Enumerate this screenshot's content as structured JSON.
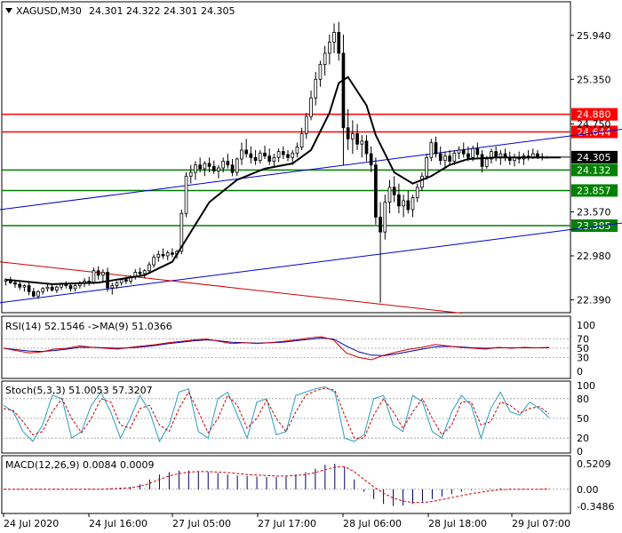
{
  "chart_data": {
    "type": "candlestick",
    "symbol": "XAGUSD,M30",
    "ohlc_label": "24.301 24.322 24.301 24.305",
    "y_ticks": [
      "25.940",
      "25.350",
      "24.750",
      "23.570",
      "22.980",
      "22.390"
    ],
    "x_ticks": [
      "24 Jul 2020",
      "24 Jul 16:00",
      "27 Jul 05:00",
      "27 Jul 17:00",
      "28 Jul 06:00",
      "28 Jul 18:00",
      "29 Jul 07:00"
    ],
    "ylim": [
      22.3,
      26.2
    ],
    "current_price": "24.305",
    "horizontal_levels": [
      {
        "value": 24.88,
        "label": "24.880",
        "color": "#ff0000"
      },
      {
        "value": 24.644,
        "label": "24.644",
        "color": "#ff0000"
      },
      {
        "value": 24.132,
        "label": "24.132",
        "color": "#008000"
      },
      {
        "value": 23.857,
        "label": "23.857",
        "color": "#008000"
      },
      {
        "value": 23.385,
        "label": "23.385",
        "color": "#008000"
      }
    ],
    "trendlines": [
      {
        "color": "#0000cc",
        "x": [
          0,
          700
        ],
        "y": [
          23.6,
          24.68
        ]
      },
      {
        "color": "#0000cc",
        "x": [
          0,
          700
        ],
        "y": [
          22.35,
          23.42
        ]
      },
      {
        "color": "#cc0000",
        "x": [
          0,
          520
        ],
        "y": [
          22.9,
          22.21
        ]
      }
    ],
    "candles": [
      [
        22.64,
        22.68,
        22.58,
        22.66
      ],
      [
        22.66,
        22.7,
        22.6,
        22.62
      ],
      [
        22.62,
        22.66,
        22.55,
        22.6
      ],
      [
        22.6,
        22.63,
        22.52,
        22.56
      ],
      [
        22.56,
        22.6,
        22.5,
        22.58
      ],
      [
        22.58,
        22.62,
        22.45,
        22.5
      ],
      [
        22.5,
        22.55,
        22.42,
        22.44
      ],
      [
        22.44,
        22.52,
        22.4,
        22.5
      ],
      [
        22.5,
        22.56,
        22.46,
        22.54
      ],
      [
        22.54,
        22.6,
        22.5,
        22.56
      ],
      [
        22.56,
        22.6,
        22.5,
        22.52
      ],
      [
        22.52,
        22.58,
        22.48,
        22.56
      ],
      [
        22.56,
        22.62,
        22.52,
        22.6
      ],
      [
        22.6,
        22.64,
        22.54,
        22.58
      ],
      [
        22.58,
        22.62,
        22.5,
        22.54
      ],
      [
        22.54,
        22.6,
        22.5,
        22.58
      ],
      [
        22.58,
        22.64,
        22.54,
        22.62
      ],
      [
        22.62,
        22.68,
        22.56,
        22.64
      ],
      [
        22.64,
        22.7,
        22.58,
        22.62
      ],
      [
        22.62,
        22.82,
        22.6,
        22.78
      ],
      [
        22.78,
        22.84,
        22.66,
        22.72
      ],
      [
        22.72,
        22.8,
        22.64,
        22.76
      ],
      [
        22.76,
        22.82,
        22.5,
        22.55
      ],
      [
        22.55,
        22.62,
        22.46,
        22.58
      ],
      [
        22.58,
        22.64,
        22.54,
        22.62
      ],
      [
        22.62,
        22.68,
        22.58,
        22.66
      ],
      [
        22.66,
        22.7,
        22.6,
        22.64
      ],
      [
        22.64,
        22.72,
        22.6,
        22.7
      ],
      [
        22.7,
        22.8,
        22.66,
        22.76
      ],
      [
        22.76,
        22.82,
        22.7,
        22.74
      ],
      [
        22.74,
        22.8,
        22.68,
        22.78
      ],
      [
        22.78,
        22.9,
        22.74,
        22.86
      ],
      [
        22.86,
        23.0,
        22.82,
        22.96
      ],
      [
        22.96,
        23.05,
        22.9,
        23.0
      ],
      [
        23.0,
        23.08,
        22.94,
        22.98
      ],
      [
        22.98,
        23.05,
        22.92,
        23.02
      ],
      [
        23.02,
        23.08,
        22.96,
        23.0
      ],
      [
        23.0,
        23.06,
        22.94,
        23.04
      ],
      [
        23.04,
        23.6,
        23.0,
        23.55
      ],
      [
        23.55,
        24.1,
        23.5,
        24.05
      ],
      [
        24.05,
        24.2,
        23.95,
        24.1
      ],
      [
        24.1,
        24.25,
        24.0,
        24.2
      ],
      [
        24.2,
        24.3,
        24.1,
        24.15
      ],
      [
        24.15,
        24.25,
        24.05,
        24.22
      ],
      [
        24.22,
        24.3,
        24.1,
        24.18
      ],
      [
        24.18,
        24.26,
        24.08,
        24.12
      ],
      [
        24.12,
        24.2,
        24.02,
        24.16
      ],
      [
        24.16,
        24.3,
        24.1,
        24.25
      ],
      [
        24.25,
        24.35,
        24.15,
        24.2
      ],
      [
        24.2,
        24.28,
        24.05,
        24.1
      ],
      [
        24.1,
        24.3,
        24.05,
        24.28
      ],
      [
        24.28,
        24.5,
        24.2,
        24.4
      ],
      [
        24.4,
        24.55,
        24.3,
        24.35
      ],
      [
        24.35,
        24.45,
        24.22,
        24.3
      ],
      [
        24.3,
        24.4,
        24.2,
        24.26
      ],
      [
        24.26,
        24.4,
        24.22,
        24.36
      ],
      [
        24.36,
        24.46,
        24.28,
        24.32
      ],
      [
        24.32,
        24.42,
        24.2,
        24.25
      ],
      [
        24.25,
        24.35,
        24.18,
        24.3
      ],
      [
        24.3,
        24.42,
        24.24,
        24.38
      ],
      [
        24.38,
        24.45,
        24.28,
        24.34
      ],
      [
        24.34,
        24.4,
        24.25,
        24.3
      ],
      [
        24.3,
        24.4,
        24.2,
        24.36
      ],
      [
        24.36,
        24.5,
        24.3,
        24.44
      ],
      [
        24.44,
        24.7,
        24.4,
        24.62
      ],
      [
        24.62,
        24.9,
        24.55,
        24.85
      ],
      [
        24.85,
        25.2,
        24.8,
        25.1
      ],
      [
        25.1,
        25.45,
        25.0,
        25.35
      ],
      [
        25.35,
        25.6,
        25.25,
        25.55
      ],
      [
        25.55,
        25.8,
        25.4,
        25.7
      ],
      [
        25.7,
        25.95,
        25.55,
        25.85
      ],
      [
        25.85,
        26.1,
        25.7,
        25.98
      ],
      [
        25.98,
        26.12,
        25.6,
        25.7
      ],
      [
        25.7,
        25.95,
        24.2,
        24.7
      ],
      [
        24.7,
        24.95,
        24.4,
        24.55
      ],
      [
        24.55,
        24.8,
        24.35,
        24.62
      ],
      [
        24.62,
        24.75,
        24.4,
        24.48
      ],
      [
        24.48,
        24.6,
        24.3,
        24.52
      ],
      [
        24.52,
        24.6,
        24.25,
        24.35
      ],
      [
        24.35,
        24.45,
        24.1,
        24.2
      ],
      [
        24.2,
        24.3,
        23.4,
        23.5
      ],
      [
        23.5,
        23.7,
        22.35,
        23.3
      ],
      [
        23.3,
        23.8,
        23.2,
        23.7
      ],
      [
        23.7,
        24.0,
        23.55,
        23.9
      ],
      [
        23.9,
        24.05,
        23.7,
        23.8
      ],
      [
        23.8,
        23.95,
        23.55,
        23.65
      ],
      [
        23.65,
        23.8,
        23.5,
        23.72
      ],
      [
        23.72,
        23.85,
        23.55,
        23.6
      ],
      [
        23.6,
        23.8,
        23.5,
        23.76
      ],
      [
        23.76,
        23.95,
        23.7,
        23.9
      ],
      [
        23.9,
        24.1,
        23.85,
        24.05
      ],
      [
        24.05,
        24.35,
        24.0,
        24.3
      ],
      [
        24.3,
        24.55,
        24.25,
        24.5
      ],
      [
        24.5,
        24.58,
        24.3,
        24.35
      ],
      [
        24.35,
        24.45,
        24.2,
        24.26
      ],
      [
        24.26,
        24.38,
        24.15,
        24.32
      ],
      [
        24.32,
        24.4,
        24.2,
        24.25
      ],
      [
        24.25,
        24.4,
        24.2,
        24.36
      ],
      [
        24.36,
        24.45,
        24.28,
        24.4
      ],
      [
        24.4,
        24.5,
        24.3,
        24.35
      ],
      [
        24.35,
        24.45,
        24.25,
        24.3
      ],
      [
        24.3,
        24.46,
        24.25,
        24.42
      ],
      [
        24.42,
        24.5,
        24.3,
        24.34
      ],
      [
        24.34,
        24.4,
        24.1,
        24.18
      ],
      [
        24.18,
        24.32,
        24.15,
        24.28
      ],
      [
        24.28,
        24.42,
        24.22,
        24.38
      ],
      [
        24.38,
        24.45,
        24.25,
        24.3
      ],
      [
        24.3,
        24.4,
        24.2,
        24.35
      ],
      [
        24.35,
        24.42,
        24.25,
        24.3
      ],
      [
        24.3,
        24.38,
        24.2,
        24.26
      ],
      [
        24.26,
        24.35,
        24.18,
        24.3
      ],
      [
        24.3,
        24.38,
        24.22,
        24.28
      ],
      [
        24.28,
        24.36,
        24.2,
        24.32
      ],
      [
        24.32,
        24.4,
        24.26,
        24.3
      ],
      [
        24.3,
        24.42,
        24.28,
        24.35
      ],
      [
        24.35,
        24.4,
        24.28,
        24.31
      ],
      [
        24.31,
        24.36,
        24.26,
        24.3
      ],
      [
        24.301,
        24.322,
        24.301,
        24.305
      ]
    ],
    "moving_average": [
      [
        0,
        22.66
      ],
      [
        10,
        22.6
      ],
      [
        20,
        22.62
      ],
      [
        30,
        22.72
      ],
      [
        36,
        22.9
      ],
      [
        40,
        23.3
      ],
      [
        44,
        23.7
      ],
      [
        50,
        24.0
      ],
      [
        56,
        24.15
      ],
      [
        62,
        24.22
      ],
      [
        66,
        24.4
      ],
      [
        70,
        24.9
      ],
      [
        72,
        25.3
      ],
      [
        74,
        25.38
      ],
      [
        78,
        25.0
      ],
      [
        80,
        24.6
      ],
      [
        84,
        24.1
      ],
      [
        88,
        23.95
      ],
      [
        92,
        24.05
      ],
      [
        96,
        24.2
      ],
      [
        100,
        24.28
      ],
      [
        106,
        24.3
      ],
      [
        112,
        24.3
      ],
      [
        120,
        24.3
      ]
    ],
    "rsi": {
      "label": "RSI(14) 52.1546 ->MA(9) 51.0366",
      "ticks": [
        "100",
        "70",
        "50",
        "30",
        "0"
      ],
      "rsi_values": [
        50,
        45,
        40,
        42,
        48,
        50,
        55,
        52,
        50,
        48,
        52,
        55,
        58,
        62,
        65,
        68,
        70,
        65,
        60,
        62,
        60,
        62,
        65,
        68,
        72,
        75,
        68,
        40,
        30,
        25,
        35,
        42,
        48,
        52,
        58,
        55,
        52,
        50,
        48,
        52,
        50,
        52,
        51,
        52
      ],
      "ma_values": [
        50,
        47,
        44,
        43,
        45,
        48,
        52,
        52,
        51,
        50,
        51,
        53,
        56,
        60,
        63,
        66,
        68,
        66,
        63,
        62,
        61,
        62,
        63,
        66,
        69,
        72,
        70,
        55,
        42,
        35,
        34,
        38,
        43,
        48,
        53,
        54,
        53,
        51,
        50,
        51,
        51,
        51,
        51,
        51
      ]
    },
    "stoch": {
      "label": "Stoch(5,3,3) 51.0053 57.3207",
      "ticks": [
        "100",
        "80",
        "50",
        "20",
        "0"
      ],
      "k_values": [
        70,
        60,
        30,
        15,
        40,
        85,
        80,
        20,
        30,
        70,
        90,
        60,
        20,
        50,
        85,
        60,
        15,
        40,
        90,
        95,
        30,
        20,
        80,
        90,
        55,
        20,
        75,
        80,
        25,
        30,
        85,
        90,
        95,
        98,
        90,
        20,
        15,
        25,
        80,
        85,
        40,
        30,
        85,
        75,
        30,
        20,
        60,
        85,
        70,
        20,
        65,
        90,
        60,
        55,
        75,
        65,
        51
      ],
      "d_values": [
        65,
        62,
        45,
        25,
        30,
        60,
        80,
        50,
        28,
        50,
        80,
        75,
        40,
        35,
        65,
        70,
        40,
        30,
        65,
        90,
        60,
        28,
        50,
        85,
        70,
        35,
        50,
        78,
        50,
        30,
        60,
        85,
        92,
        96,
        93,
        55,
        20,
        20,
        55,
        80,
        60,
        35,
        60,
        80,
        50,
        25,
        40,
        75,
        75,
        40,
        45,
        75,
        70,
        58,
        65,
        68,
        57
      ]
    },
    "macd": {
      "label": "MACD(12,26,9) 0.0084 0.0009",
      "ticks": [
        "0.5209",
        "0.00",
        "-0.3486"
      ],
      "histogram": [
        0,
        0,
        0,
        0,
        0,
        0,
        0,
        0,
        0,
        0,
        0.01,
        0.02,
        0.03,
        0.05,
        0.1,
        0.2,
        0.3,
        0.35,
        0.38,
        0.38,
        0.37,
        0.35,
        0.33,
        0.3,
        0.28,
        0.27,
        0.26,
        0.25,
        0.25,
        0.26,
        0.3,
        0.35,
        0.42,
        0.5,
        0.52,
        0.45,
        0.2,
        -0.05,
        -0.2,
        -0.3,
        -0.34,
        -0.33,
        -0.3,
        -0.25,
        -0.2,
        -0.15,
        -0.1,
        -0.05,
        -0.02,
        0,
        0.01,
        0.02,
        0.01,
        0,
        0,
        0,
        0.01
      ],
      "signal": [
        0,
        0,
        0,
        0,
        0,
        0,
        0,
        0,
        0,
        0,
        0,
        0.01,
        0.02,
        0.03,
        0.06,
        0.12,
        0.2,
        0.27,
        0.32,
        0.35,
        0.36,
        0.36,
        0.35,
        0.34,
        0.32,
        0.3,
        0.29,
        0.28,
        0.27,
        0.27,
        0.28,
        0.3,
        0.34,
        0.4,
        0.45,
        0.46,
        0.36,
        0.2,
        0.05,
        -0.08,
        -0.18,
        -0.24,
        -0.27,
        -0.27,
        -0.25,
        -0.21,
        -0.17,
        -0.13,
        -0.09,
        -0.06,
        -0.03,
        -0.01,
        0,
        0,
        0,
        0,
        0.01
      ]
    }
  }
}
